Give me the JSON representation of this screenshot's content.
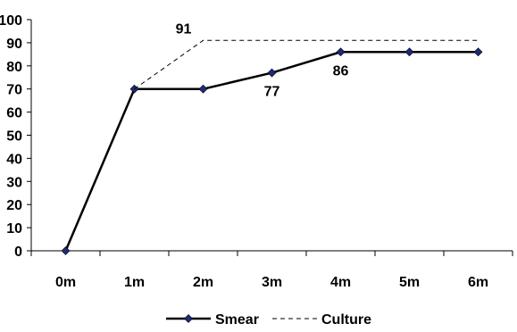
{
  "chart_data": {
    "type": "line",
    "categories": [
      "0m",
      "1m",
      "2m",
      "3m",
      "4m",
      "5m",
      "6m"
    ],
    "ylim": [
      0,
      100
    ],
    "yticks": [
      0,
      10,
      20,
      30,
      40,
      50,
      60,
      70,
      80,
      90,
      100
    ],
    "grid": false,
    "legend_position": "bottom",
    "series": [
      {
        "name": "Smear",
        "style": "solid-with-diamond-markers",
        "color": "#000000",
        "marker_color": "#1f2a7a",
        "points": [
          {
            "x": "0m",
            "y": 0
          },
          {
            "x": "1m",
            "y": 70
          },
          {
            "x": "2m",
            "y": 70
          },
          {
            "x": "3m",
            "y": 77
          },
          {
            "x": "4m",
            "y": 86
          },
          {
            "x": "5m",
            "y": 86
          },
          {
            "x": "6m",
            "y": 86
          }
        ]
      },
      {
        "name": "Culture",
        "style": "dashed",
        "color": "#000000",
        "points": [
          {
            "x": "1m",
            "y": 70
          },
          {
            "x": "2m",
            "y": 91
          },
          {
            "x": "3m",
            "y": 91
          },
          {
            "x": "4m",
            "y": 91
          },
          {
            "x": "5m",
            "y": 91
          },
          {
            "x": "6m",
            "y": 91
          }
        ]
      }
    ],
    "annotations": [
      {
        "text": "91",
        "series": "Culture",
        "x": "2m",
        "y": 91
      },
      {
        "text": "77",
        "series": "Smear",
        "x": "3m",
        "y": 77
      },
      {
        "text": "86",
        "series": "Smear",
        "x": "4m",
        "y": 86
      }
    ]
  }
}
